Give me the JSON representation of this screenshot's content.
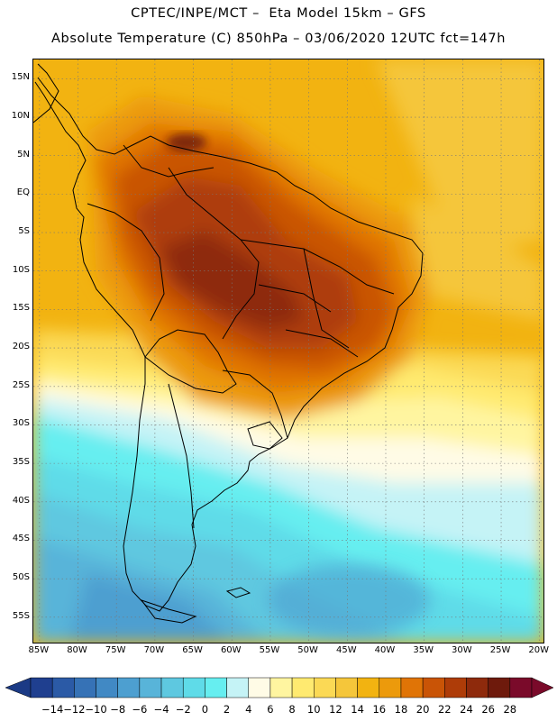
{
  "header": {
    "title_line1": "CPTEC/INPE/MCT –  Eta Model 15km – GFS",
    "title_line2": "Absolute Temperature (C) 850hPa – 03/06/2020 12UTC fct=147h"
  },
  "map": {
    "lat_labels": [
      "15N",
      "10N",
      "5N",
      "EQ",
      "5S",
      "10S",
      "15S",
      "20S",
      "25S",
      "30S",
      "35S",
      "40S",
      "45S",
      "50S",
      "55S"
    ],
    "lat_values": [
      15,
      10,
      5,
      0,
      -5,
      -10,
      -15,
      -20,
      -25,
      -30,
      -35,
      -40,
      -45,
      -50,
      -55
    ],
    "lon_labels": [
      "85W",
      "80W",
      "75W",
      "70W",
      "65W",
      "60W",
      "55W",
      "50W",
      "45W",
      "40W",
      "35W",
      "30W",
      "25W",
      "20W"
    ],
    "lon_values": [
      -85,
      -80,
      -75,
      -70,
      -65,
      -60,
      -55,
      -50,
      -45,
      -40,
      -35,
      -30,
      -25,
      -20
    ],
    "extent": {
      "lon_min": -85.8,
      "lon_max": -19.5,
      "lat_min": -58.3,
      "lat_max": 17.5
    },
    "background_color": "#f2b311"
  },
  "colorbar": {
    "labels": [
      "-14",
      "-12",
      "-10",
      "-8",
      "-6",
      "-4",
      "-2",
      "0",
      "2",
      "4",
      "6",
      "8",
      "10",
      "12",
      "14",
      "16",
      "18",
      "20",
      "22",
      "24",
      "26",
      "28"
    ],
    "colors": [
      "#1f3f8f",
      "#2b5aa6",
      "#3672b6",
      "#4189c4",
      "#4d9fd0",
      "#58b4d9",
      "#5ec8e0",
      "#5fdbe8",
      "#66eef0",
      "#c5f3f6",
      "#fffbe6",
      "#fff5a0",
      "#ffea70",
      "#fbd955",
      "#f5c63a",
      "#f2b311",
      "#ec9a0c",
      "#e07406",
      "#c95406",
      "#ae3c08",
      "#8e2a0c",
      "#6e1a0c",
      "#7a0a2a"
    ],
    "below_color": "#1b3a85",
    "above_color": "#7a0a2a"
  }
}
